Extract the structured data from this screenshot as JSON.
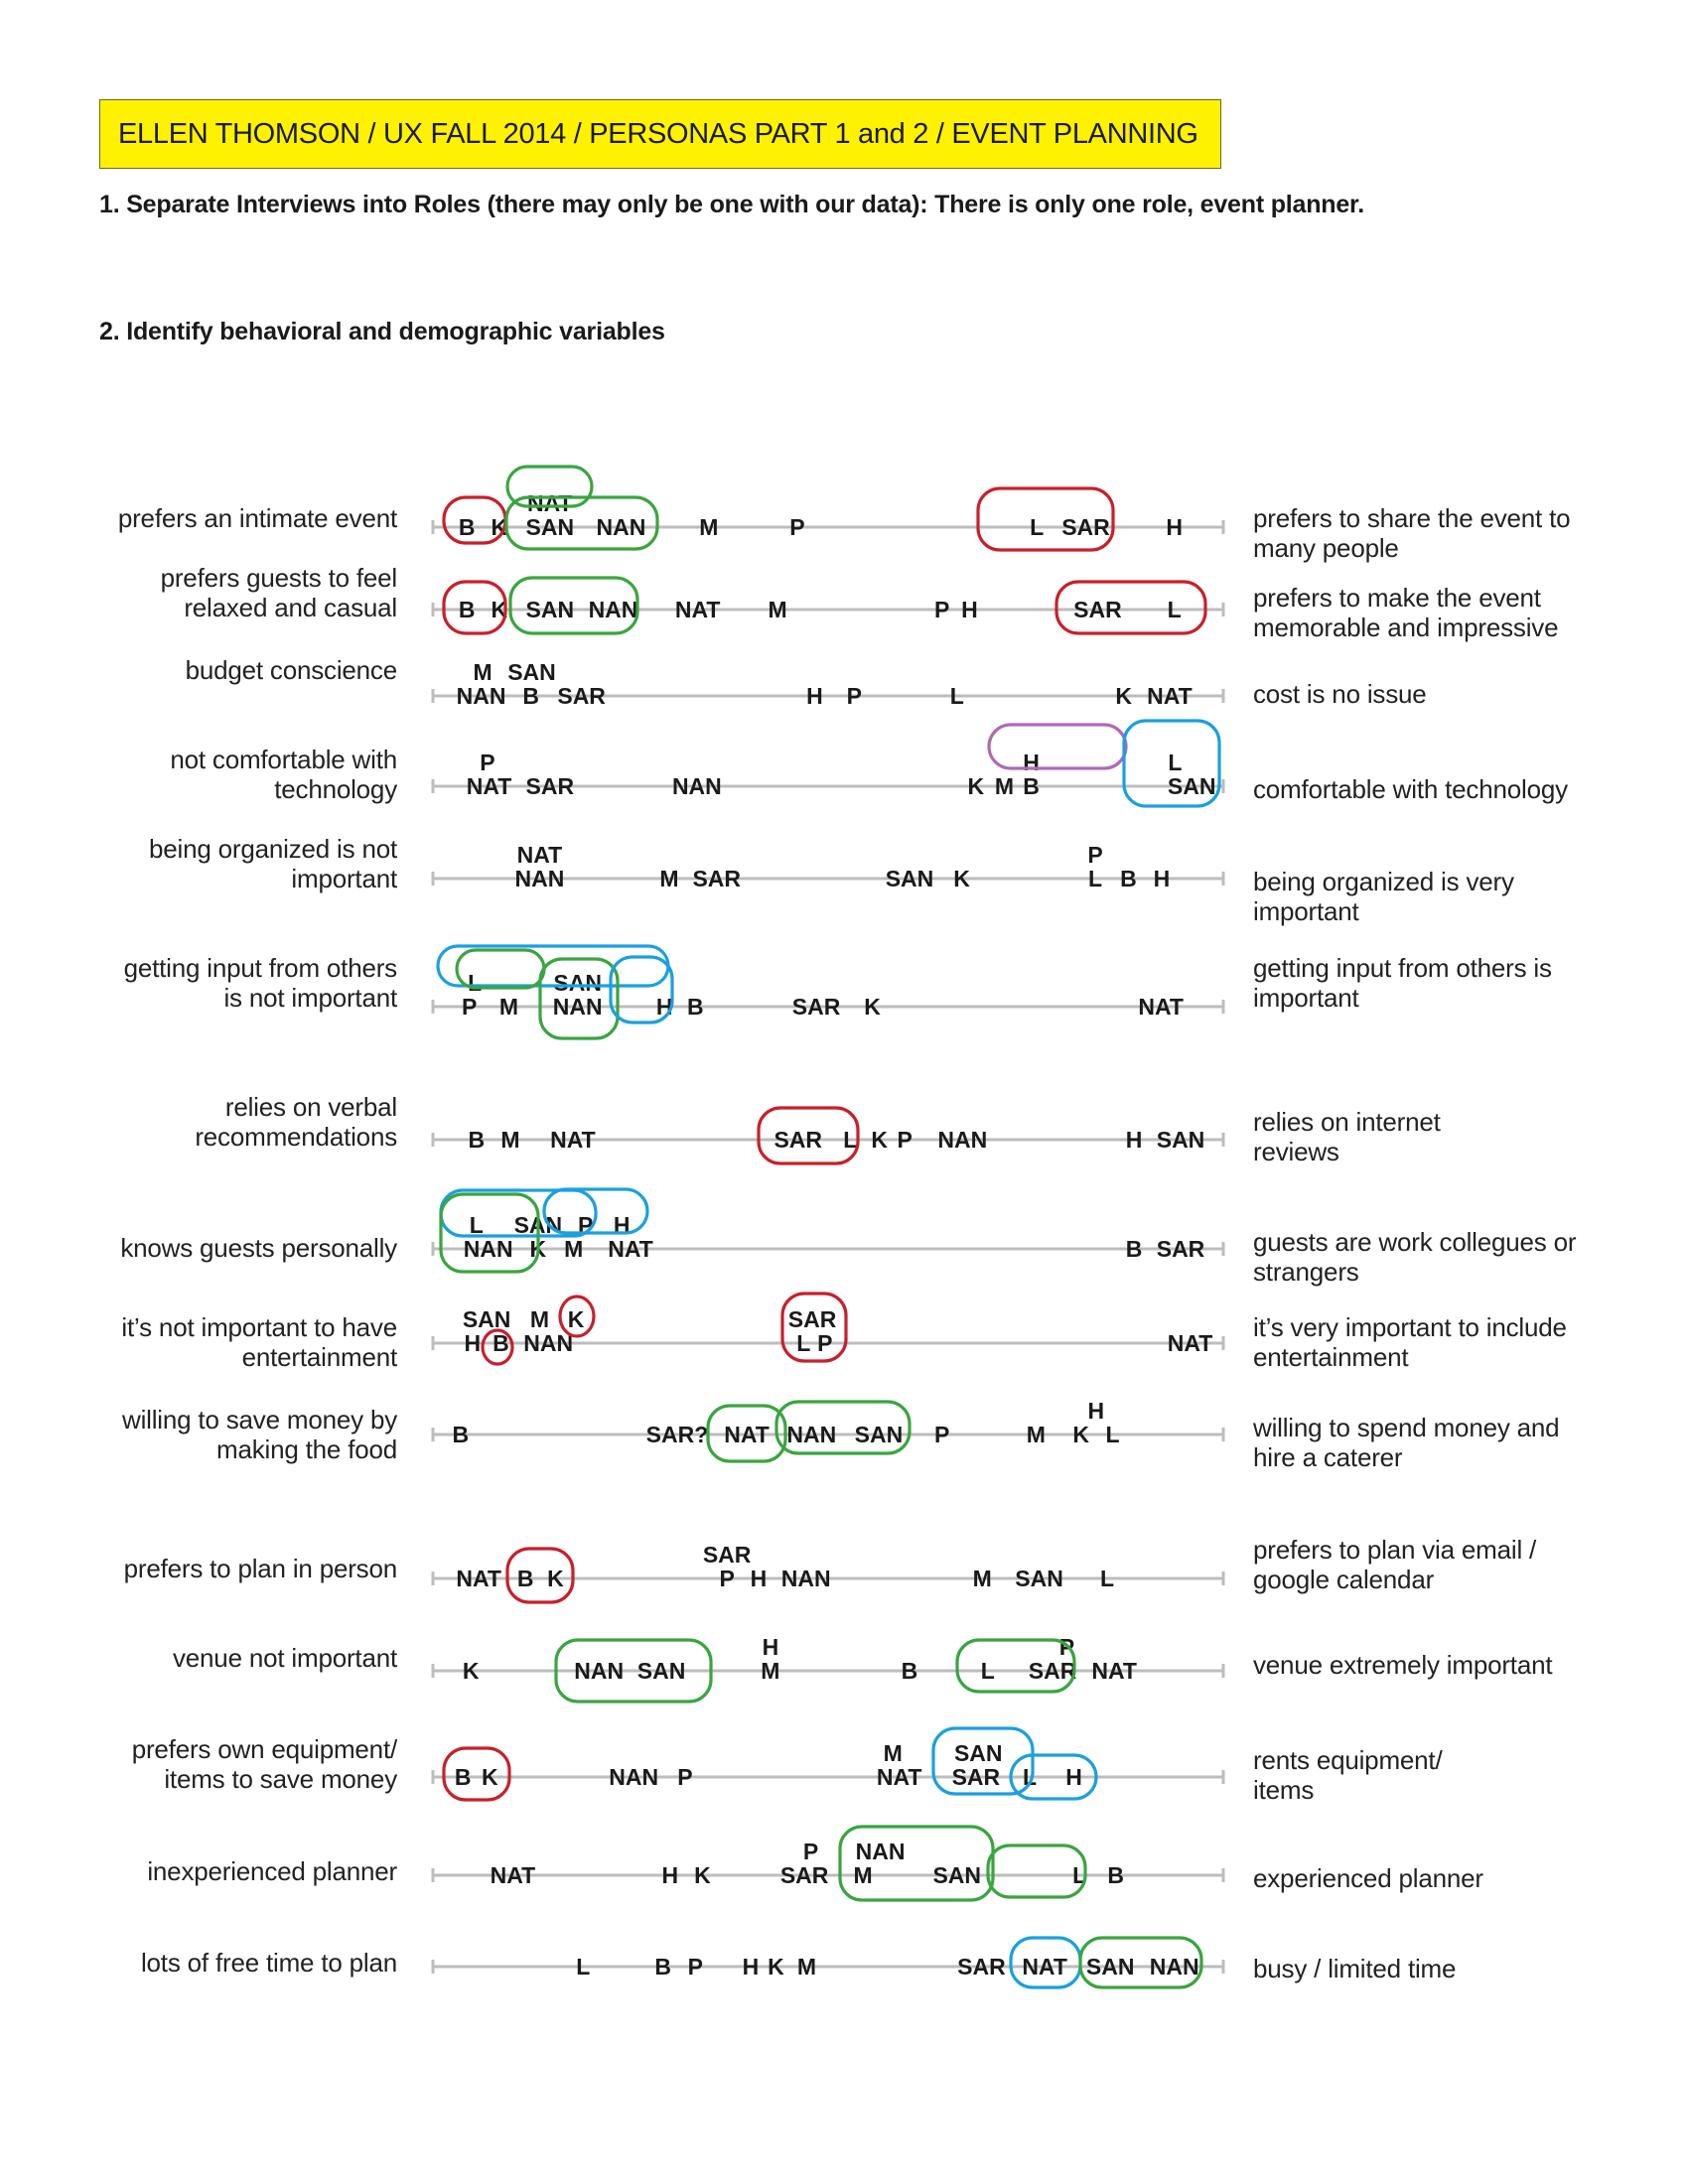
{
  "header": {
    "title": "ELLEN THOMSON / UX FALL 2014 / PERSONAS PART 1  and 2 / EVENT PLANNING"
  },
  "sections": {
    "step1": "1. Separate Interviews into Roles (there may only be one with our data): There is only one role, event planner.",
    "step2": "2. Identify behavioral and demographic variables"
  },
  "colors": {
    "title_bg": "#fff200",
    "axis": "#bdbdbd",
    "red": "#c8202a",
    "green": "#3aa540",
    "blue": "#1aa0e0",
    "purple": "#b06ab3"
  },
  "scales": [
    {
      "left": [
        "prefers an intimate event"
      ],
      "right": [
        "prefers to share the event to",
        "many people"
      ],
      "labels": [
        {
          "t": "NAT",
          "x": 0.148,
          "dy": -1
        },
        {
          "t": "B",
          "x": 0.043
        },
        {
          "t": "K",
          "x": 0.084
        },
        {
          "t": "SAN",
          "x": 0.148
        },
        {
          "t": "NAN",
          "x": 0.238
        },
        {
          "t": "M",
          "x": 0.349
        },
        {
          "t": "P",
          "x": 0.461
        },
        {
          "t": "L",
          "x": 0.764
        },
        {
          "t": "SAR",
          "x": 0.826
        },
        {
          "t": "H",
          "x": 0.938
        }
      ]
    },
    {
      "left": [
        "prefers guests to feel",
        "relaxed and casual"
      ],
      "right": [
        "prefers to make the event",
        "memorable and impressive"
      ],
      "labels": [
        {
          "t": "B",
          "x": 0.043
        },
        {
          "t": "K",
          "x": 0.084
        },
        {
          "t": "SAN",
          "x": 0.148
        },
        {
          "t": "NAN",
          "x": 0.228
        },
        {
          "t": "NAT",
          "x": 0.335
        },
        {
          "t": "M",
          "x": 0.436
        },
        {
          "t": "P",
          "x": 0.644
        },
        {
          "t": "H",
          "x": 0.679
        },
        {
          "t": "SAR",
          "x": 0.841
        },
        {
          "t": "L",
          "x": 0.938
        }
      ]
    },
    {
      "left": [
        "budget conscience"
      ],
      "right": [
        "cost is no issue"
      ],
      "labels": [
        {
          "t": "M",
          "x": 0.063,
          "dy": -1
        },
        {
          "t": "SAN",
          "x": 0.125,
          "dy": -1
        },
        {
          "t": "NAN",
          "x": 0.061
        },
        {
          "t": "B",
          "x": 0.124
        },
        {
          "t": "SAR",
          "x": 0.188
        },
        {
          "t": "H",
          "x": 0.483
        },
        {
          "t": "P",
          "x": 0.533
        },
        {
          "t": "L",
          "x": 0.663
        },
        {
          "t": "K",
          "x": 0.874
        },
        {
          "t": "NAT",
          "x": 0.932
        }
      ]
    },
    {
      "left": [
        "not comfortable with",
        "technology"
      ],
      "right": [
        "comfortable with technology"
      ],
      "labels": [
        {
          "t": "P",
          "x": 0.069,
          "dy": -1
        },
        {
          "t": "NAT",
          "x": 0.071
        },
        {
          "t": "SAR",
          "x": 0.148
        },
        {
          "t": "NAN",
          "x": 0.334
        },
        {
          "t": "H",
          "x": 0.757,
          "dy": -1
        },
        {
          "t": "L",
          "x": 0.939,
          "dy": -1
        },
        {
          "t": "K",
          "x": 0.687
        },
        {
          "t": "M",
          "x": 0.723
        },
        {
          "t": "B",
          "x": 0.757
        },
        {
          "t": "SAN",
          "x": 0.96
        }
      ]
    },
    {
      "left": [
        "being organized is not",
        "important"
      ],
      "right": [
        "being organized is very",
        "important"
      ],
      "labels": [
        {
          "t": "NAT",
          "x": 0.135,
          "dy": -1
        },
        {
          "t": "NAN",
          "x": 0.135
        },
        {
          "t": "M",
          "x": 0.299
        },
        {
          "t": "SAR",
          "x": 0.359
        },
        {
          "t": "SAN",
          "x": 0.603
        },
        {
          "t": "K",
          "x": 0.669
        },
        {
          "t": "P",
          "x": 0.838,
          "dy": -1
        },
        {
          "t": "L",
          "x": 0.838
        },
        {
          "t": "B",
          "x": 0.88
        },
        {
          "t": "H",
          "x": 0.922
        }
      ]
    },
    {
      "left": [
        "getting input from others",
        "is not important"
      ],
      "right": [
        "getting input from others is",
        "important"
      ],
      "labels": [
        {
          "t": "L",
          "x": 0.053,
          "dy": -1
        },
        {
          "t": "SAN",
          "x": 0.183,
          "dy": -1
        },
        {
          "t": "P",
          "x": 0.046
        },
        {
          "t": "M",
          "x": 0.096
        },
        {
          "t": "NAN",
          "x": 0.183
        },
        {
          "t": "H",
          "x": 0.293
        },
        {
          "t": "B",
          "x": 0.332
        },
        {
          "t": "SAR",
          "x": 0.485
        },
        {
          "t": "K",
          "x": 0.556
        },
        {
          "t": "NAT",
          "x": 0.921
        }
      ]
    },
    {
      "left": [
        "relies on verbal",
        "recommendations"
      ],
      "right": [
        "relies on internet",
        "reviews"
      ],
      "labels": [
        {
          "t": "B",
          "x": 0.055
        },
        {
          "t": "M",
          "x": 0.098
        },
        {
          "t": "NAT",
          "x": 0.177
        },
        {
          "t": "SAR",
          "x": 0.462
        },
        {
          "t": "L",
          "x": 0.528
        },
        {
          "t": "K",
          "x": 0.565
        },
        {
          "t": "P",
          "x": 0.597
        },
        {
          "t": "NAN",
          "x": 0.67
        },
        {
          "t": "H",
          "x": 0.887
        },
        {
          "t": "SAN",
          "x": 0.946
        }
      ]
    },
    {
      "left": [
        "knows guests personally"
      ],
      "right": [
        "guests are work collegues or",
        "strangers"
      ],
      "labels": [
        {
          "t": "L",
          "x": 0.055,
          "dy": -1
        },
        {
          "t": "SAN",
          "x": 0.133,
          "dy": -1
        },
        {
          "t": "P",
          "x": 0.193,
          "dy": -1
        },
        {
          "t": "H",
          "x": 0.239,
          "dy": -1
        },
        {
          "t": "NAN",
          "x": 0.07
        },
        {
          "t": "K",
          "x": 0.133
        },
        {
          "t": "M",
          "x": 0.178
        },
        {
          "t": "NAT",
          "x": 0.25
        },
        {
          "t": "B",
          "x": 0.887
        },
        {
          "t": "SAR",
          "x": 0.946
        }
      ]
    },
    {
      "left": [
        "it’s not important to have",
        "entertainment"
      ],
      "right": [
        "it’s very important to include",
        "entertainment"
      ],
      "labels": [
        {
          "t": "SAN",
          "x": 0.068,
          "dy": -1
        },
        {
          "t": "M",
          "x": 0.135,
          "dy": -1
        },
        {
          "t": "K",
          "x": 0.181,
          "dy": -1
        },
        {
          "t": "H",
          "x": 0.05
        },
        {
          "t": "B",
          "x": 0.086
        },
        {
          "t": "NAN",
          "x": 0.146
        },
        {
          "t": "SAR",
          "x": 0.48,
          "dy": -1
        },
        {
          "t": "L",
          "x": 0.469
        },
        {
          "t": "P",
          "x": 0.496
        },
        {
          "t": "NAT",
          "x": 0.958
        }
      ]
    },
    {
      "left": [
        "willing to save money by",
        "making the food"
      ],
      "right": [
        "willing to spend money and",
        "hire a caterer"
      ],
      "labels": [
        {
          "t": "B",
          "x": 0.035
        },
        {
          "t": "SAR?",
          "x": 0.309
        },
        {
          "t": "NAT",
          "x": 0.397
        },
        {
          "t": "NAN",
          "x": 0.479
        },
        {
          "t": "SAN",
          "x": 0.564
        },
        {
          "t": "P",
          "x": 0.644
        },
        {
          "t": "M",
          "x": 0.763
        },
        {
          "t": "H",
          "x": 0.839,
          "dy": -1
        },
        {
          "t": "K",
          "x": 0.82
        },
        {
          "t": "L",
          "x": 0.86
        }
      ]
    },
    {
      "left": [
        "prefers to plan in person"
      ],
      "right": [
        "prefers to plan via email /",
        "google calendar"
      ],
      "labels": [
        {
          "t": "NAT",
          "x": 0.058
        },
        {
          "t": "B",
          "x": 0.117
        },
        {
          "t": "K",
          "x": 0.155
        },
        {
          "t": "SAR",
          "x": 0.372,
          "dy": -1
        },
        {
          "t": "P",
          "x": 0.372
        },
        {
          "t": "H",
          "x": 0.412
        },
        {
          "t": "NAN",
          "x": 0.472
        },
        {
          "t": "M",
          "x": 0.695
        },
        {
          "t": "SAN",
          "x": 0.767
        },
        {
          "t": "L",
          "x": 0.853
        }
      ]
    },
    {
      "left": [
        "venue not important"
      ],
      "right": [
        "venue extremely important"
      ],
      "labels": [
        {
          "t": "K",
          "x": 0.048
        },
        {
          "t": "NAN",
          "x": 0.21
        },
        {
          "t": "SAN",
          "x": 0.289
        },
        {
          "t": "H",
          "x": 0.427,
          "dy": -1
        },
        {
          "t": "M",
          "x": 0.427
        },
        {
          "t": "B",
          "x": 0.603
        },
        {
          "t": "L",
          "x": 0.702
        },
        {
          "t": "P",
          "x": 0.802,
          "dy": -1
        },
        {
          "t": "SAR",
          "x": 0.784
        },
        {
          "t": "NAT",
          "x": 0.862
        }
      ]
    },
    {
      "left": [
        "prefers own equipment/",
        "items to save money"
      ],
      "right": [
        "rents equipment/",
        "items"
      ],
      "labels": [
        {
          "t": "B",
          "x": 0.038
        },
        {
          "t": "K",
          "x": 0.072
        },
        {
          "t": "NAN",
          "x": 0.254
        },
        {
          "t": "P",
          "x": 0.319
        },
        {
          "t": "M",
          "x": 0.582,
          "dy": -1
        },
        {
          "t": "NAT",
          "x": 0.59
        },
        {
          "t": "SAN",
          "x": 0.69,
          "dy": -1
        },
        {
          "t": "SAR",
          "x": 0.687
        },
        {
          "t": "L",
          "x": 0.755
        },
        {
          "t": "H",
          "x": 0.811
        }
      ]
    },
    {
      "left": [
        "inexperienced planner"
      ],
      "right": [
        "experienced planner"
      ],
      "labels": [
        {
          "t": "NAT",
          "x": 0.101
        },
        {
          "t": "H",
          "x": 0.3
        },
        {
          "t": "K",
          "x": 0.341
        },
        {
          "t": "P",
          "x": 0.478,
          "dy": -1
        },
        {
          "t": "SAR",
          "x": 0.47
        },
        {
          "t": "M",
          "x": 0.544
        },
        {
          "t": "NAN",
          "x": 0.566,
          "dy": -1
        },
        {
          "t": "SAN",
          "x": 0.663
        },
        {
          "t": "L",
          "x": 0.818
        },
        {
          "t": "B",
          "x": 0.864
        }
      ]
    },
    {
      "left": [
        "lots of free time to plan"
      ],
      "right": [
        "busy / limited time"
      ],
      "labels": [
        {
          "t": "L",
          "x": 0.19
        },
        {
          "t": "B",
          "x": 0.291
        },
        {
          "t": "P",
          "x": 0.332
        },
        {
          "t": "H",
          "x": 0.402
        },
        {
          "t": "K",
          "x": 0.434
        },
        {
          "t": "M",
          "x": 0.473
        },
        {
          "t": "SAR",
          "x": 0.694
        },
        {
          "t": "NAT",
          "x": 0.774
        },
        {
          "t": "SAN",
          "x": 0.857
        },
        {
          "t": "NAN",
          "x": 0.938
        }
      ]
    }
  ]
}
